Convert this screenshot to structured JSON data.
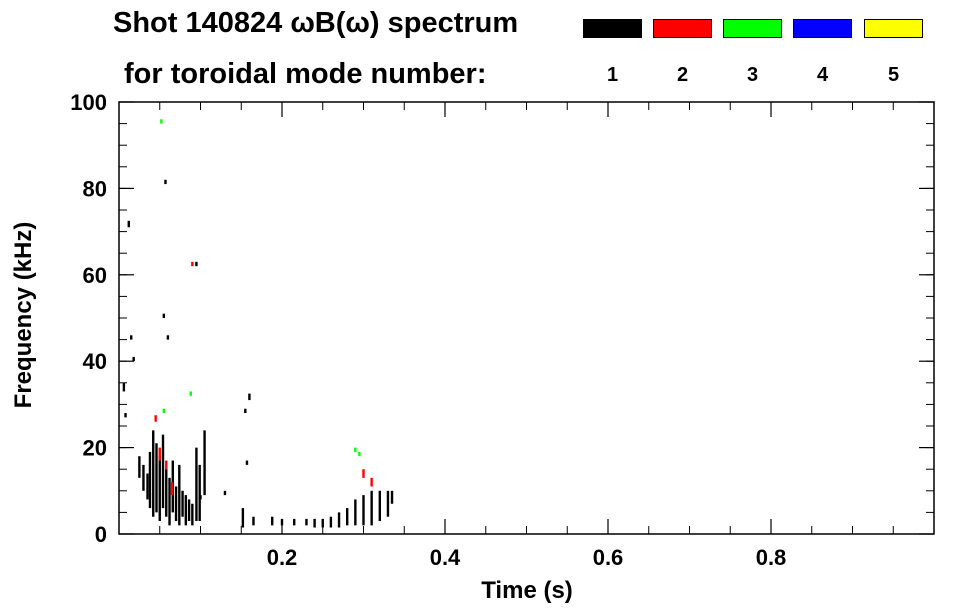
{
  "title_line1": "Shot 140824 ωB(ω) spectrum",
  "title_line2": "for toroidal mode number:",
  "legend": [
    {
      "label": "1",
      "color": "#000000"
    },
    {
      "label": "2",
      "color": "#ff0000"
    },
    {
      "label": "3",
      "color": "#00ff00"
    },
    {
      "label": "4",
      "color": "#0000ff"
    },
    {
      "label": "5",
      "color": "#ffff00"
    }
  ],
  "chart_data": {
    "type": "scatter",
    "title": "Shot 140824 ωB(ω) spectrum",
    "xlabel": "Time (s)",
    "ylabel": "Frequency (kHz)",
    "xlim": [
      0.0,
      1.0
    ],
    "ylim": [
      0,
      100
    ],
    "x_ticks": [
      "0.2",
      "0.4",
      "0.6",
      "0.8"
    ],
    "x_tick_values": [
      0.2,
      0.4,
      0.6,
      0.8
    ],
    "y_ticks": [
      "0",
      "20",
      "40",
      "60",
      "80",
      "100"
    ],
    "y_tick_values": [
      0,
      20,
      40,
      60,
      80,
      100
    ],
    "grid": false,
    "series": [
      {
        "name": "1",
        "color": "#000000",
        "segments": [
          [
            0.012,
            71,
            0.012,
            72.5
          ],
          [
            0.015,
            45,
            0.015,
            46
          ],
          [
            0.018,
            40,
            0.018,
            41
          ],
          [
            0.006,
            33,
            0.006,
            35
          ],
          [
            0.008,
            27,
            0.008,
            28
          ],
          [
            0.025,
            13,
            0.025,
            18
          ],
          [
            0.03,
            10,
            0.03,
            16
          ],
          [
            0.035,
            8,
            0.035,
            14
          ],
          [
            0.038,
            6,
            0.038,
            19
          ],
          [
            0.042,
            4,
            0.042,
            24
          ],
          [
            0.046,
            5,
            0.046,
            21
          ],
          [
            0.05,
            3,
            0.05,
            18
          ],
          [
            0.054,
            6,
            0.054,
            23
          ],
          [
            0.058,
            4,
            0.058,
            15
          ],
          [
            0.062,
            2,
            0.062,
            13
          ],
          [
            0.066,
            5,
            0.066,
            17
          ],
          [
            0.07,
            3,
            0.07,
            11
          ],
          [
            0.074,
            2,
            0.074,
            16
          ],
          [
            0.078,
            4,
            0.078,
            10
          ],
          [
            0.082,
            2,
            0.082,
            9
          ],
          [
            0.086,
            3,
            0.086,
            8
          ],
          [
            0.09,
            2,
            0.09,
            7
          ],
          [
            0.095,
            3,
            0.095,
            20
          ],
          [
            0.099,
            3,
            0.099,
            16
          ],
          [
            0.105,
            9,
            0.105,
            24
          ],
          [
            0.13,
            9,
            0.13,
            10
          ],
          [
            0.155,
            28,
            0.155,
            29
          ],
          [
            0.157,
            16,
            0.157,
            17
          ],
          [
            0.16,
            31,
            0.16,
            32.5
          ],
          [
            0.152,
            1.5,
            0.152,
            6
          ],
          [
            0.165,
            2,
            0.165,
            4
          ],
          [
            0.188,
            2,
            0.188,
            4
          ],
          [
            0.2,
            2,
            0.2,
            3.5
          ],
          [
            0.215,
            2,
            0.215,
            3.5
          ],
          [
            0.23,
            2,
            0.23,
            3.5
          ],
          [
            0.24,
            1.5,
            0.24,
            3.5
          ],
          [
            0.25,
            1.5,
            0.25,
            3.5
          ],
          [
            0.26,
            1.5,
            0.26,
            4
          ],
          [
            0.27,
            1.5,
            0.27,
            5
          ],
          [
            0.28,
            2,
            0.28,
            6
          ],
          [
            0.29,
            2,
            0.29,
            8
          ],
          [
            0.3,
            2,
            0.3,
            9
          ],
          [
            0.31,
            2,
            0.31,
            10
          ],
          [
            0.32,
            3,
            0.32,
            10
          ],
          [
            0.33,
            4,
            0.33,
            10
          ],
          [
            0.335,
            7,
            0.335,
            10
          ],
          [
            0.055,
            50,
            0.055,
            51
          ],
          [
            0.057,
            81,
            0.057,
            82
          ],
          [
            0.06,
            45,
            0.06,
            46
          ],
          [
            0.095,
            62,
            0.095,
            63
          ],
          [
            0.1,
            8,
            0.1,
            9
          ]
        ]
      },
      {
        "name": "2",
        "color": "#ff0000",
        "segments": [
          [
            0.05,
            17,
            0.05,
            20
          ],
          [
            0.058,
            15,
            0.058,
            17
          ],
          [
            0.065,
            9,
            0.065,
            12
          ],
          [
            0.045,
            26,
            0.045,
            27.5
          ],
          [
            0.09,
            62,
            0.09,
            63
          ],
          [
            0.3,
            13,
            0.3,
            15
          ],
          [
            0.31,
            11,
            0.31,
            13
          ]
        ]
      },
      {
        "name": "3",
        "color": "#00ff00",
        "segments": [
          [
            0.052,
            95,
            0.052,
            96
          ],
          [
            0.055,
            28,
            0.055,
            29
          ],
          [
            0.088,
            32,
            0.088,
            33
          ],
          [
            0.29,
            19,
            0.29,
            20
          ],
          [
            0.295,
            18,
            0.295,
            19
          ]
        ]
      },
      {
        "name": "4",
        "color": "#0000ff",
        "segments": []
      },
      {
        "name": "5",
        "color": "#ffff00",
        "segments": []
      }
    ]
  }
}
